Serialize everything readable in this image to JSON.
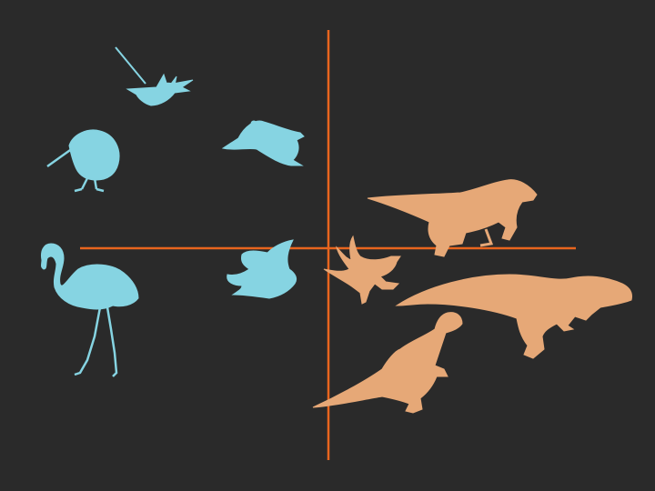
{
  "colors": {
    "background": "#2a2a2a",
    "axis": "#e8651e",
    "bird": "#86d4e2",
    "dinosaur": "#e6a877"
  },
  "silhouettes": [
    {
      "icon": "hummingbird-icon",
      "group": "bird"
    },
    {
      "icon": "kiwi-icon",
      "group": "bird"
    },
    {
      "icon": "penguin-icon",
      "group": "bird"
    },
    {
      "icon": "flamingo-icon",
      "group": "bird"
    },
    {
      "icon": "flying-bird-icon",
      "group": "bird"
    },
    {
      "icon": "microraptor-icon",
      "group": "dinosaur"
    },
    {
      "icon": "velociraptor-icon",
      "group": "dinosaur"
    },
    {
      "icon": "tyrannosaur-icon",
      "group": "dinosaur"
    },
    {
      "icon": "small-theropod-icon",
      "group": "dinosaur"
    }
  ]
}
